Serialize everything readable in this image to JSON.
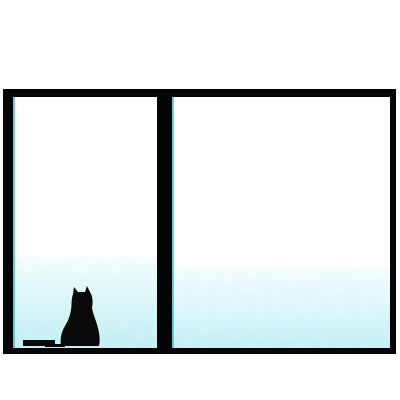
{
  "scene": {
    "colors": {
      "background": "#ffffff",
      "frame": "#050505",
      "glass_top": "#ffffff",
      "frost": "#bfeef3",
      "frost_edge": "#2fb7c4",
      "cat": "#0a0a0a"
    },
    "panes": [
      {
        "name": "left-window-pane"
      },
      {
        "name": "right-window-pane"
      }
    ],
    "cat": {
      "name": "cat-silhouette"
    }
  }
}
